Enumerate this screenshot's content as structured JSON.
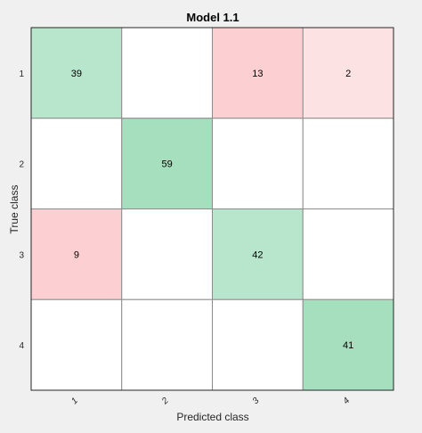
{
  "chart_data": {
    "type": "heatmap",
    "title": "Model 1.1",
    "xlabel": "Predicted class",
    "ylabel": "True class",
    "x_categories": [
      "1",
      "2",
      "3",
      "4"
    ],
    "y_categories": [
      "1",
      "2",
      "3",
      "4"
    ],
    "values": [
      [
        39,
        null,
        13,
        2
      ],
      [
        null,
        59,
        null,
        null
      ],
      [
        9,
        null,
        42,
        null
      ],
      [
        null,
        null,
        null,
        41
      ]
    ],
    "colors": {
      "background": "#f0f0f0",
      "empty_cell": "#ffffff",
      "diagonal_high": "#a5dfbe",
      "diagonal_mid": "#b8e6cc",
      "offdiag_high": "#fcd0d2",
      "offdiag_low": "#fde2e4",
      "grid": "#8c8c8c",
      "text": "#000000"
    }
  }
}
